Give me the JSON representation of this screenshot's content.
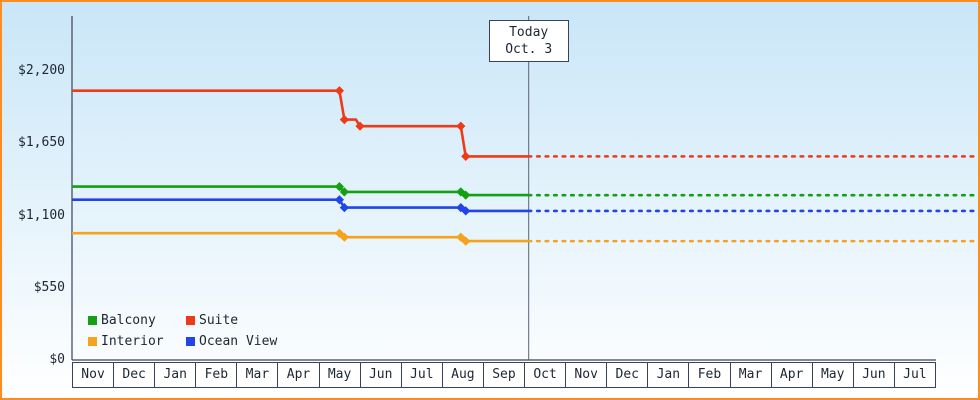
{
  "frame": {
    "border_color": "#ff8c1f",
    "background_top": "#c9e6f8",
    "background_bottom": "#ffffff",
    "axis_color": "#39425a",
    "today_line_color": "#5a6377"
  },
  "chart_data": {
    "type": "line",
    "y_axis": {
      "ticks": [
        0,
        550,
        1100,
        1650,
        2200
      ],
      "tick_labels": [
        "$0",
        "$550",
        "$1,100",
        "$1,650",
        "$2,200"
      ],
      "range": [
        0,
        2600
      ],
      "currency": "USD"
    },
    "x_axis": {
      "months": [
        "Nov",
        "Dec",
        "Jan",
        "Feb",
        "Mar",
        "Apr",
        "May",
        "Jun",
        "Jul",
        "Aug",
        "Sep",
        "Oct",
        "Nov",
        "Dec",
        "Jan",
        "Feb",
        "Mar",
        "Apr",
        "May",
        "Jun",
        "Jul"
      ]
    },
    "today": {
      "line1": "Today",
      "line2": "Oct. 3",
      "month_position": 11.1
    },
    "series": [
      {
        "name": "Interior",
        "color": "#f6a21d",
        "points": [
          [
            0,
            965
          ],
          [
            6.5,
            965
          ],
          [
            6.62,
            935
          ],
          [
            9.45,
            935
          ],
          [
            9.57,
            905
          ],
          [
            11.1,
            905
          ]
        ],
        "markers": [
          [
            6.5,
            965
          ],
          [
            6.62,
            935
          ],
          [
            9.45,
            935
          ],
          [
            9.57,
            905
          ]
        ],
        "projected_value": 905
      },
      {
        "name": "Ocean View",
        "color": "#2145e6",
        "points": [
          [
            0,
            1220
          ],
          [
            6.5,
            1220
          ],
          [
            6.62,
            1160
          ],
          [
            9.45,
            1160
          ],
          [
            9.57,
            1135
          ],
          [
            11.1,
            1135
          ]
        ],
        "markers": [
          [
            6.5,
            1220
          ],
          [
            6.62,
            1160
          ],
          [
            9.45,
            1160
          ],
          [
            9.57,
            1135
          ]
        ],
        "projected_value": 1135
      },
      {
        "name": "Balcony",
        "color": "#13a013",
        "points": [
          [
            0,
            1320
          ],
          [
            6.5,
            1320
          ],
          [
            6.62,
            1280
          ],
          [
            9.45,
            1280
          ],
          [
            9.57,
            1255
          ],
          [
            11.1,
            1255
          ]
        ],
        "markers": [
          [
            6.5,
            1320
          ],
          [
            6.62,
            1280
          ],
          [
            9.45,
            1280
          ],
          [
            9.57,
            1255
          ]
        ],
        "projected_value": 1255
      },
      {
        "name": "Suite",
        "color": "#ee3a17",
        "points": [
          [
            0,
            2050
          ],
          [
            6.5,
            2050
          ],
          [
            6.62,
            1830
          ],
          [
            6.9,
            1830
          ],
          [
            7.0,
            1780
          ],
          [
            9.45,
            1780
          ],
          [
            9.57,
            1550
          ],
          [
            11.1,
            1550
          ]
        ],
        "markers": [
          [
            6.5,
            2050
          ],
          [
            6.62,
            1830
          ],
          [
            7.0,
            1780
          ],
          [
            9.45,
            1780
          ],
          [
            9.57,
            1550
          ]
        ],
        "projected_value": 1550
      }
    ],
    "legend": {
      "order": [
        "Balcony",
        "Suite",
        "Interior",
        "Ocean View"
      ]
    }
  }
}
